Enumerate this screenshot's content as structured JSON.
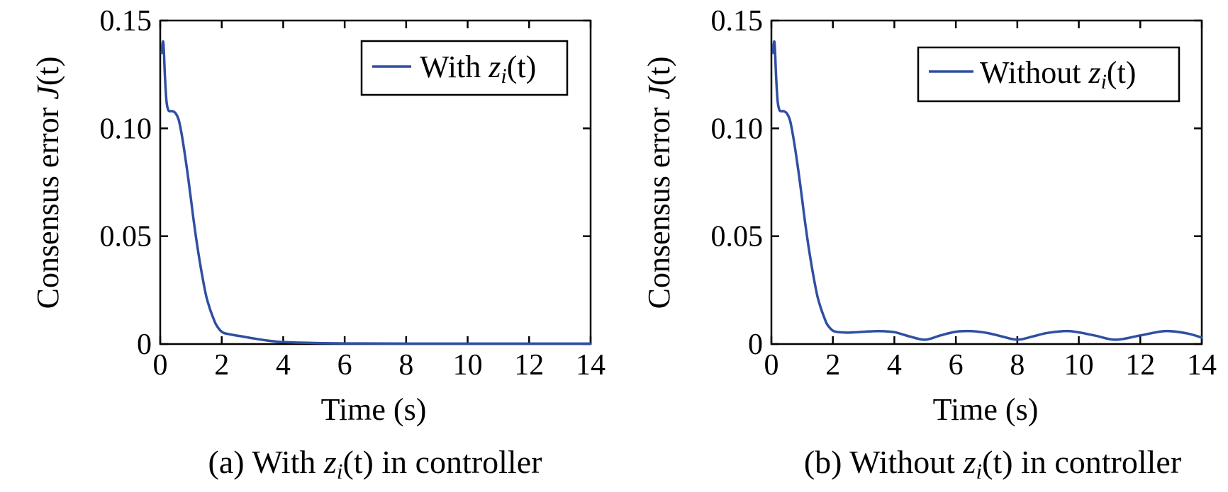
{
  "colors": {
    "line": "#2f4fa2",
    "axis": "#000000",
    "background": "#ffffff"
  },
  "chart_data": [
    {
      "type": "line",
      "xlabel": "Time (s)",
      "ylabel_main": "Consensus error ",
      "ylabel_func": "J",
      "ylabel_arg": "(t)",
      "xlim": [
        0,
        14
      ],
      "ylim": [
        0,
        0.15
      ],
      "xticks": [
        0,
        2,
        4,
        6,
        8,
        10,
        12,
        14
      ],
      "xticklabels": [
        "0",
        "2",
        "4",
        "6",
        "8",
        "10",
        "12",
        "14"
      ],
      "yticks": [
        0,
        0.05,
        0.1,
        0.15
      ],
      "yticklabels": [
        "0",
        "0.05",
        "0.10",
        "0.15"
      ],
      "legend_position": "top-right",
      "caption_prefix": "(a) With ",
      "caption_suffix": " in controller",
      "series": [
        {
          "legend_prefix": "With ",
          "legend_var": "z",
          "legend_sub": "i",
          "legend_arg": "(t)",
          "x": [
            0.05,
            0.1,
            0.15,
            0.2,
            0.25,
            0.3,
            0.4,
            0.5,
            0.6,
            0.7,
            0.8,
            0.9,
            1.0,
            1.1,
            1.2,
            1.3,
            1.4,
            1.5,
            1.6,
            1.7,
            1.8,
            1.9,
            2.0,
            2.1,
            2.2,
            2.3,
            2.5,
            2.8,
            3.0,
            3.5,
            4.0,
            5.0,
            6.0,
            8.0,
            10.0,
            12.0,
            14.0
          ],
          "y": [
            0.135,
            0.14,
            0.125,
            0.113,
            0.109,
            0.108,
            0.108,
            0.107,
            0.104,
            0.097,
            0.088,
            0.078,
            0.067,
            0.056,
            0.046,
            0.037,
            0.029,
            0.022,
            0.017,
            0.013,
            0.0095,
            0.0072,
            0.0057,
            0.005,
            0.0047,
            0.0044,
            0.0039,
            0.0032,
            0.0027,
            0.0016,
            0.0009,
            0.0005,
            0.0003,
            0.0002,
            0.0002,
            0.0002,
            0.0002
          ]
        }
      ]
    },
    {
      "type": "line",
      "xlabel": "Time (s)",
      "ylabel_main": "Consensus error ",
      "ylabel_func": "J",
      "ylabel_arg": "(t)",
      "xlim": [
        0,
        14
      ],
      "ylim": [
        0,
        0.15
      ],
      "xticks": [
        0,
        2,
        4,
        6,
        8,
        10,
        12,
        14
      ],
      "xticklabels": [
        "0",
        "2",
        "4",
        "6",
        "8",
        "10",
        "12",
        "14"
      ],
      "yticks": [
        0,
        0.05,
        0.1,
        0.15
      ],
      "yticklabels": [
        "0",
        "0.05",
        "0.10",
        "0.15"
      ],
      "legend_position": "top-right",
      "caption_prefix": "(b) Without ",
      "caption_suffix": " in controller",
      "series": [
        {
          "legend_prefix": "Without ",
          "legend_var": "z",
          "legend_sub": "i",
          "legend_arg": "(t)",
          "x": [
            0.05,
            0.1,
            0.15,
            0.2,
            0.25,
            0.3,
            0.4,
            0.5,
            0.6,
            0.7,
            0.8,
            0.9,
            1.0,
            1.1,
            1.2,
            1.3,
            1.4,
            1.5,
            1.6,
            1.7,
            1.8,
            1.9,
            2.0,
            2.1,
            2.2,
            2.3,
            2.5,
            2.8,
            3.0,
            3.5,
            4.0,
            4.5,
            5.0,
            5.5,
            6.0,
            6.5,
            7.0,
            7.5,
            8.0,
            8.5,
            9.0,
            9.7,
            10.5,
            11.2,
            12.0,
            12.8,
            13.5,
            14.0
          ],
          "y": [
            0.135,
            0.14,
            0.125,
            0.113,
            0.109,
            0.108,
            0.108,
            0.107,
            0.104,
            0.097,
            0.088,
            0.078,
            0.067,
            0.056,
            0.046,
            0.037,
            0.029,
            0.022,
            0.017,
            0.013,
            0.0095,
            0.0075,
            0.0062,
            0.0057,
            0.0055,
            0.0054,
            0.0053,
            0.0055,
            0.0057,
            0.006,
            0.0055,
            0.0035,
            0.002,
            0.004,
            0.0057,
            0.006,
            0.0052,
            0.0035,
            0.002,
            0.0035,
            0.0052,
            0.006,
            0.004,
            0.002,
            0.004,
            0.006,
            0.005,
            0.003
          ]
        }
      ]
    }
  ]
}
